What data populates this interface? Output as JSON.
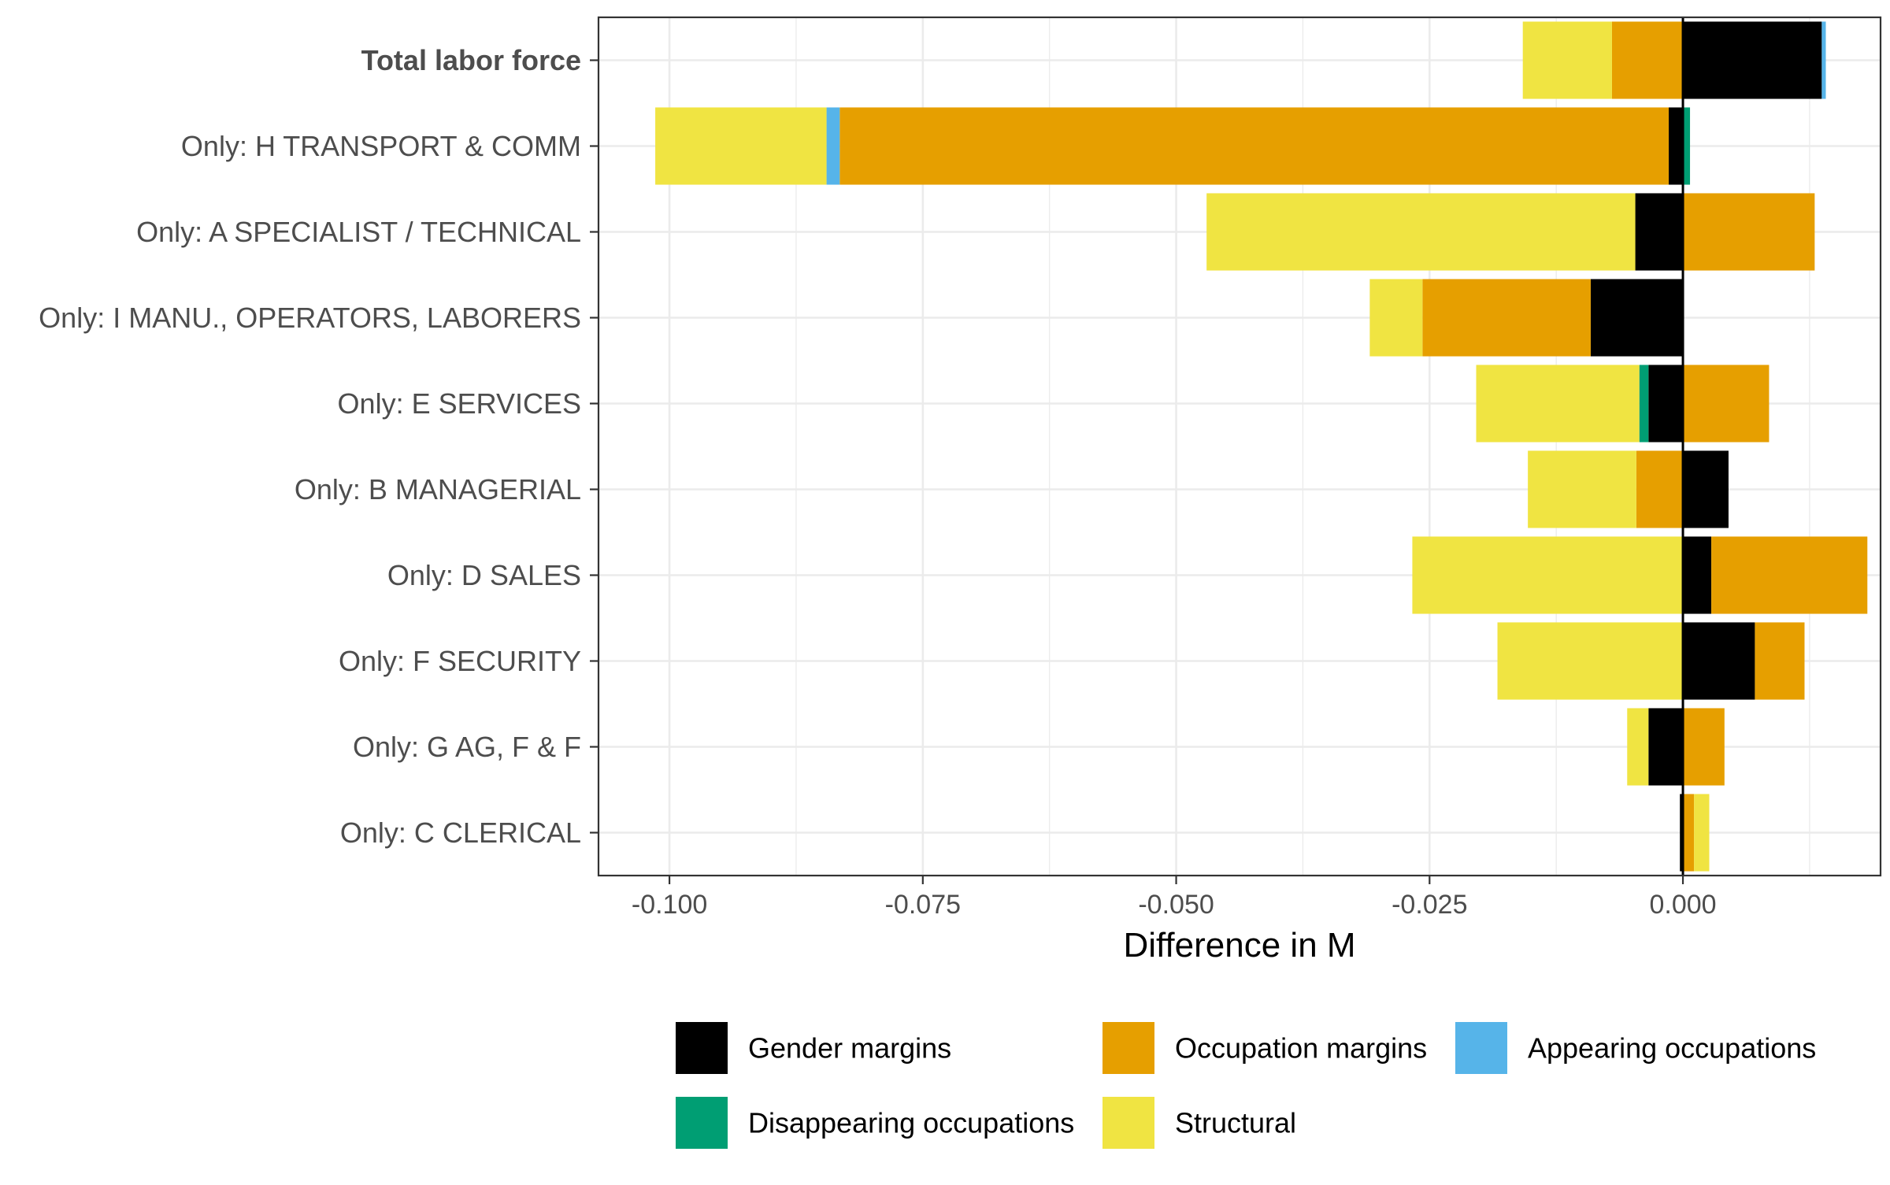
{
  "chart_data": {
    "type": "bar",
    "orientation": "horizontal",
    "stacked": "diverging",
    "xlabel": "Difference in M",
    "ylabel": "",
    "xlim": [
      -0.107,
      0.0195
    ],
    "xticks": [
      -0.1,
      -0.075,
      -0.05,
      -0.025,
      0.0
    ],
    "xtick_labels": [
      "-0.100",
      "-0.075",
      "-0.050",
      "-0.025",
      "0.000"
    ],
    "grid": true,
    "legend_position": "bottom",
    "categories": [
      "Total labor force",
      "Only: H TRANSPORT & COMM",
      "Only: A SPECIALIST / TECHNICAL",
      "Only: I MANU., OPERATORS, LABORERS",
      "Only: E SERVICES",
      "Only: B MANAGERIAL",
      "Only: D SALES",
      "Only: F SECURITY",
      "Only: G AG, F & F",
      "Only: C CLERICAL"
    ],
    "bold_categories": [
      "Total labor force"
    ],
    "series": [
      {
        "name": "Gender margins",
        "color": "#000000",
        "values": [
          0.0137,
          -0.0014,
          -0.0047,
          -0.0091,
          -0.0034,
          0.0045,
          0.0028,
          0.0071,
          -0.0034,
          -0.0003
        ]
      },
      {
        "name": "Occupation margins",
        "color": "#E69F00",
        "values": [
          -0.007,
          -0.0818,
          0.013,
          -0.0166,
          0.0085,
          -0.0046,
          0.0154,
          0.0049,
          0.0041,
          0.0011
        ]
      },
      {
        "name": "Appearing occupations",
        "color": "#56B4E9",
        "values": [
          0.0004,
          -0.0013,
          0.0,
          0.0,
          0.0,
          0.0,
          0.0,
          0.0,
          0.0,
          0.0
        ]
      },
      {
        "name": "Disappearing occupations",
        "color": "#009E73",
        "values": [
          0.0,
          0.0007,
          0.0,
          0.0,
          -0.0009,
          0.0,
          0.0,
          0.0,
          0.0,
          0.0
        ]
      },
      {
        "name": "Structural",
        "color": "#F0E442",
        "values": [
          -0.0088,
          -0.0169,
          -0.0423,
          -0.0052,
          -0.0161,
          -0.0107,
          -0.0267,
          -0.0183,
          -0.0021,
          0.0015
        ]
      }
    ]
  }
}
